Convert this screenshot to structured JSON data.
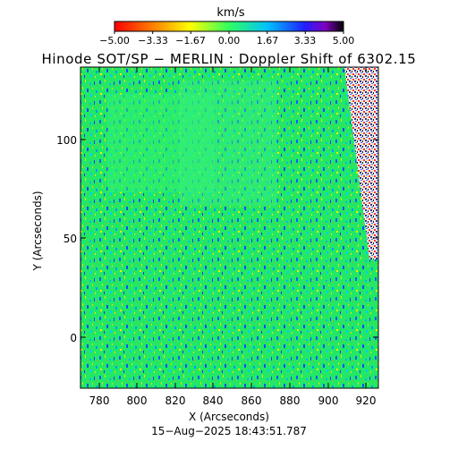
{
  "colorbar": {
    "unit": "km/s",
    "ticks": [
      "−5.00",
      "−3.33",
      "−1.67",
      "0.00",
      "1.67",
      "3.33",
      "5.00"
    ],
    "min": -5.0,
    "max": 5.0
  },
  "title": "Hinode SOT/SP − MERLIN : Doppler Shift of 6302.15",
  "axes": {
    "xlabel": "X (Arcseconds)",
    "ylabel": "Y (Arcseconds)",
    "xticks": [
      "780",
      "800",
      "820",
      "840",
      "860",
      "880",
      "900",
      "920"
    ],
    "yticks": [
      "0",
      "50",
      "100"
    ],
    "xrange": [
      767,
      923
    ],
    "yrange": [
      -28,
      133
    ]
  },
  "timestamp": "15−Aug−2025 18:43:51.787",
  "colors": {
    "background": "#20e860",
    "neutral": "#30ff70"
  }
}
